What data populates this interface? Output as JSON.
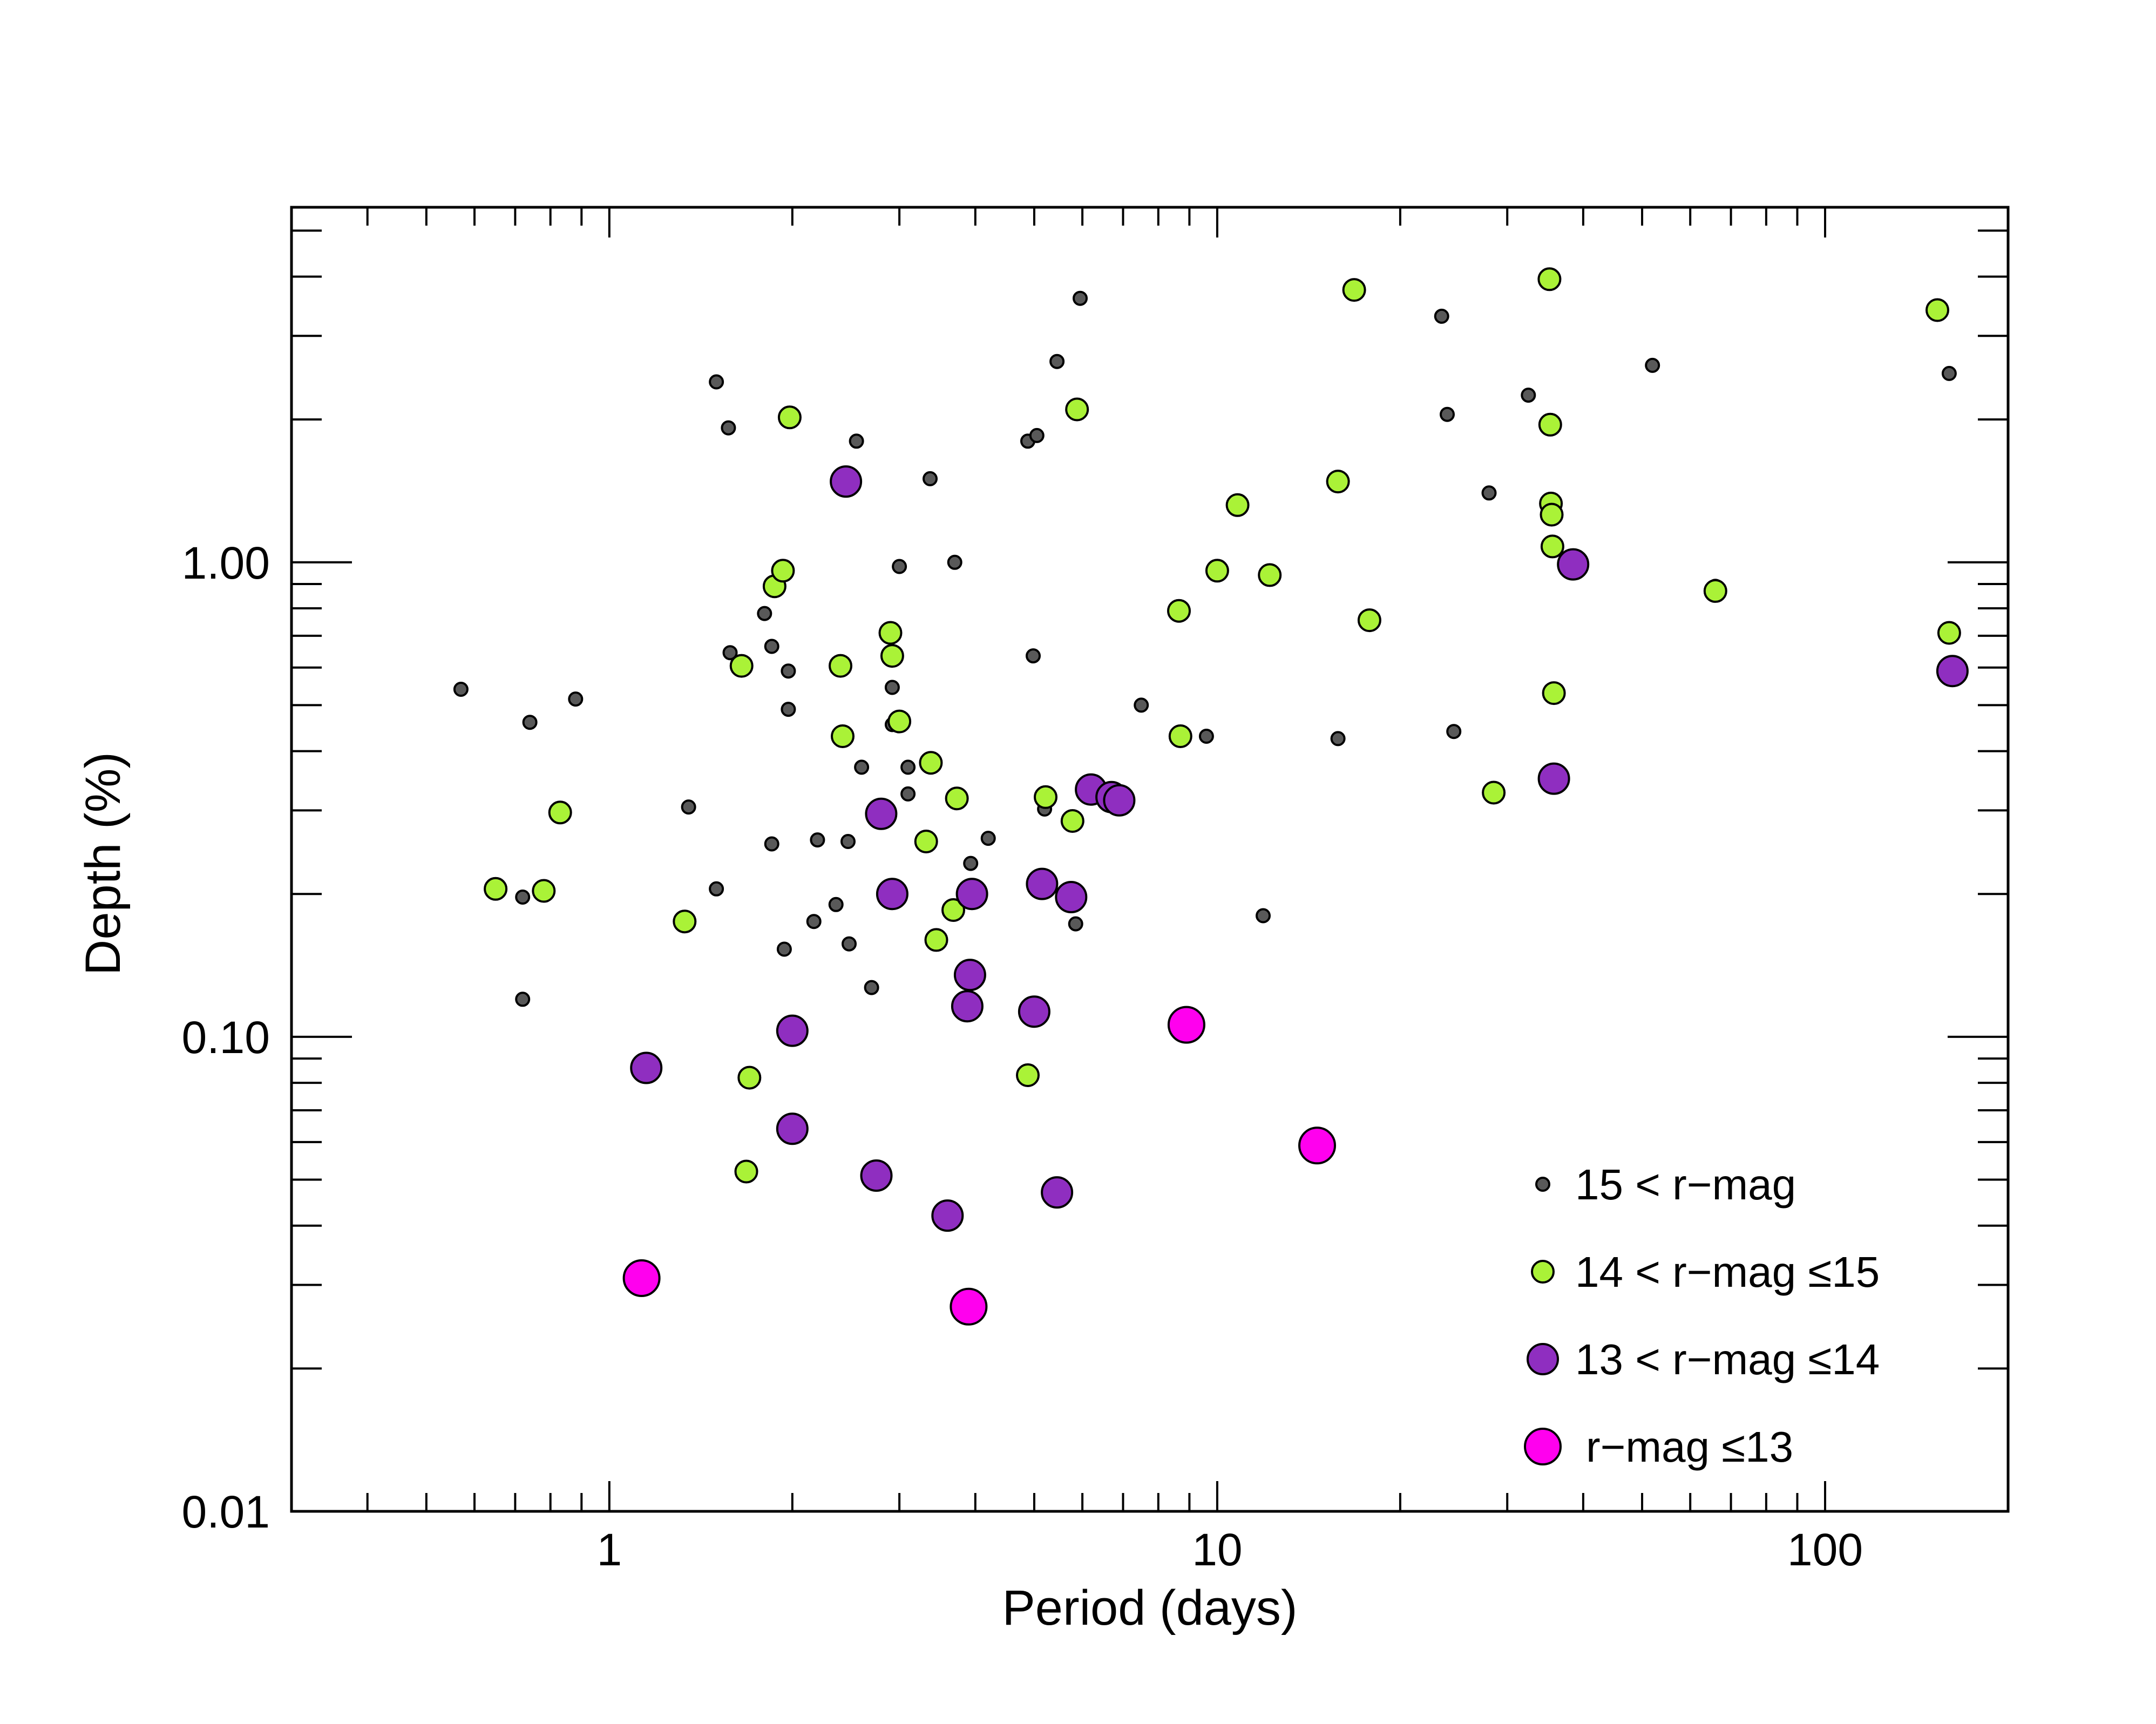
{
  "chart_data": {
    "type": "scatter",
    "title": "",
    "xlabel": "Period (days)",
    "ylabel": "Depth (%)",
    "xscale": "log",
    "yscale": "log",
    "xlim": [
      0.3,
      200
    ],
    "ylim": [
      0.01,
      5.6
    ],
    "xticks": [
      {
        "value": 1,
        "label": "1"
      },
      {
        "value": 10,
        "label": "10"
      },
      {
        "value": 100,
        "label": "100"
      }
    ],
    "yticks": [
      {
        "value": 0.01,
        "label": "0.01"
      },
      {
        "value": 0.1,
        "label": "0.10"
      },
      {
        "value": 1,
        "label": "1.00"
      }
    ],
    "legend_position": "bottom-right",
    "series": [
      {
        "name": "15 < r−mag",
        "color": "#595959",
        "size": "small",
        "points": [
          [
            0.57,
            0.54
          ],
          [
            0.74,
            0.46
          ],
          [
            0.72,
            0.197
          ],
          [
            0.72,
            0.12
          ],
          [
            0.88,
            0.515
          ],
          [
            1.35,
            0.305
          ],
          [
            1.5,
            2.4
          ],
          [
            1.57,
            1.92
          ],
          [
            1.58,
            0.645
          ],
          [
            1.5,
            0.205
          ],
          [
            1.8,
            0.78
          ],
          [
            1.85,
            0.665
          ],
          [
            1.85,
            0.255
          ],
          [
            1.97,
            0.59
          ],
          [
            1.97,
            0.49
          ],
          [
            1.94,
            0.153
          ],
          [
            2.17,
            0.175
          ],
          [
            2.2,
            0.26
          ],
          [
            2.36,
            0.19
          ],
          [
            2.47,
            0.258
          ],
          [
            2.48,
            0.157
          ],
          [
            2.55,
            1.8
          ],
          [
            2.6,
            0.37
          ],
          [
            2.7,
            0.127
          ],
          [
            2.92,
            0.545
          ],
          [
            2.92,
            0.455
          ],
          [
            3.0,
            0.98
          ],
          [
            3.1,
            0.37
          ],
          [
            3.1,
            0.325
          ],
          [
            3.37,
            1.5
          ],
          [
            3.7,
            1.0
          ],
          [
            3.93,
            0.232
          ],
          [
            4.2,
            0.262
          ],
          [
            4.88,
            1.8
          ],
          [
            5.05,
            1.85
          ],
          [
            4.98,
            0.635
          ],
          [
            5.2,
            0.302
          ],
          [
            5.45,
            2.65
          ],
          [
            5.85,
            0.173
          ],
          [
            5.95,
            3.6
          ],
          [
            7.5,
            0.5
          ],
          [
            9.6,
            0.43
          ],
          [
            11.9,
            0.18
          ],
          [
            15.8,
            0.425
          ],
          [
            23.4,
            3.3
          ],
          [
            23.9,
            2.05
          ],
          [
            24.5,
            0.44
          ],
          [
            28.0,
            1.4
          ],
          [
            32.5,
            2.25
          ],
          [
            52.0,
            2.6
          ],
          [
            66.0,
            0.89
          ],
          [
            160.0,
            2.5
          ]
        ]
      },
      {
        "name": "14 < r−mag ≤15",
        "color": "#aaf237",
        "size": "medium",
        "points": [
          [
            0.65,
            0.205
          ],
          [
            0.78,
            0.203
          ],
          [
            0.83,
            0.297
          ],
          [
            1.33,
            0.175
          ],
          [
            1.65,
            0.605
          ],
          [
            1.7,
            0.082
          ],
          [
            1.68,
            0.052
          ],
          [
            1.87,
            0.89
          ],
          [
            1.93,
            0.96
          ],
          [
            1.98,
            2.02
          ],
          [
            2.4,
            0.605
          ],
          [
            2.42,
            0.43
          ],
          [
            2.9,
            0.71
          ],
          [
            2.92,
            0.635
          ],
          [
            3.0,
            0.462
          ],
          [
            3.32,
            0.258
          ],
          [
            3.38,
            0.378
          ],
          [
            3.45,
            0.16
          ],
          [
            3.68,
            0.185
          ],
          [
            3.73,
            0.318
          ],
          [
            4.88,
            0.083
          ],
          [
            5.22,
            0.32
          ],
          [
            5.78,
            0.285
          ],
          [
            5.88,
            2.1
          ],
          [
            8.65,
            0.79
          ],
          [
            8.7,
            0.43
          ],
          [
            10.0,
            0.96
          ],
          [
            10.8,
            1.32
          ],
          [
            12.2,
            0.94
          ],
          [
            15.8,
            1.48
          ],
          [
            16.8,
            3.75
          ],
          [
            17.8,
            0.755
          ],
          [
            28.5,
            0.327
          ],
          [
            35.2,
            3.95
          ],
          [
            35.3,
            1.95
          ],
          [
            35.4,
            1.33
          ],
          [
            35.5,
            1.26
          ],
          [
            35.6,
            1.08
          ],
          [
            35.8,
            0.53
          ],
          [
            66.0,
            0.87
          ],
          [
            153.0,
            3.4
          ],
          [
            160.0,
            0.71
          ]
        ]
      },
      {
        "name": "13 < r−mag ≤14",
        "color": "#8f2ec0",
        "size": "large",
        "points": [
          [
            1.15,
            0.086
          ],
          [
            2.0,
            0.103
          ],
          [
            2.0,
            0.064
          ],
          [
            2.45,
            1.48
          ],
          [
            2.8,
            0.295
          ],
          [
            2.75,
            0.051
          ],
          [
            2.92,
            0.2
          ],
          [
            3.6,
            0.042
          ],
          [
            3.95,
            0.2
          ],
          [
            3.92,
            0.135
          ],
          [
            3.88,
            0.116
          ],
          [
            5.0,
            0.113
          ],
          [
            5.15,
            0.21
          ],
          [
            5.45,
            0.047
          ],
          [
            5.75,
            0.197
          ],
          [
            6.2,
            0.332
          ],
          [
            6.7,
            0.32
          ],
          [
            6.9,
            0.315
          ],
          [
            35.8,
            0.35
          ],
          [
            38.5,
            0.99
          ],
          [
            162.0,
            0.59
          ]
        ]
      },
      {
        "name": "r−mag ≤13",
        "color": "#ff00ee",
        "size": "xlarge",
        "points": [
          [
            1.13,
            0.031
          ],
          [
            3.9,
            0.027
          ],
          [
            8.9,
            0.106
          ],
          [
            14.6,
            0.059
          ]
        ]
      }
    ]
  }
}
